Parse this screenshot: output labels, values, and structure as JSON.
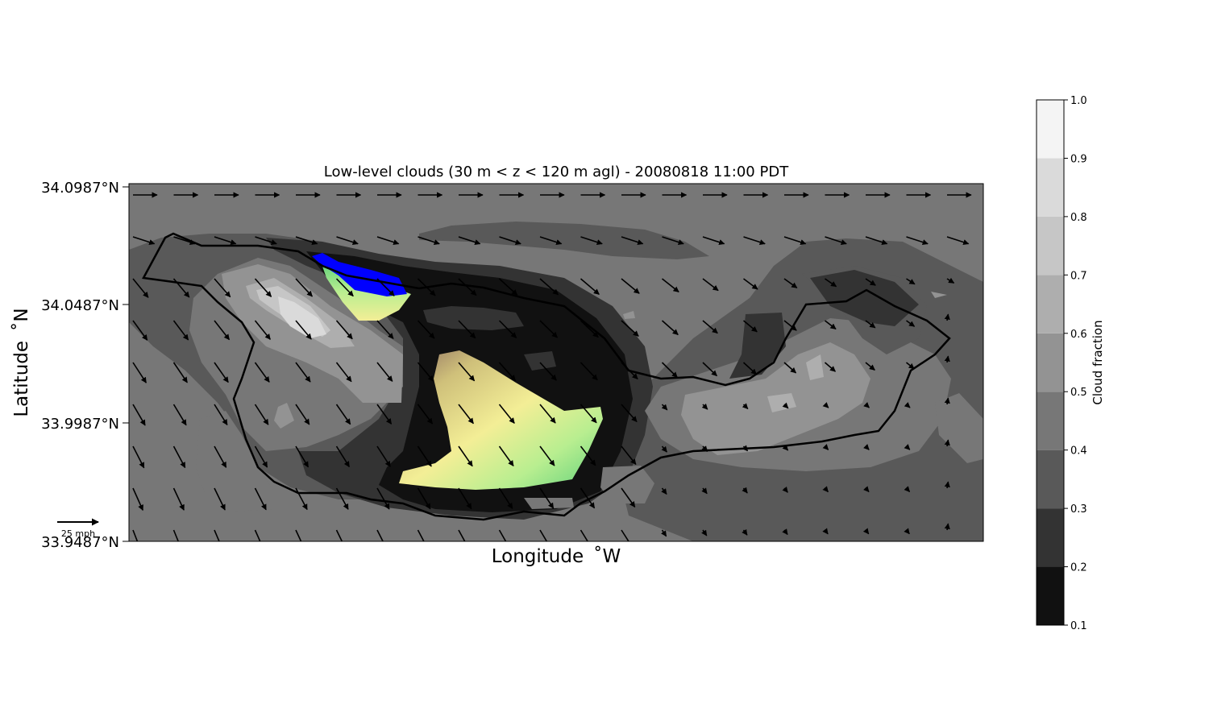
{
  "chart_data": {
    "type": "heatmap",
    "title": "Low-level clouds (30 m < z < 120 m agl) - 20080818 11:00 PDT",
    "xlabel": "Longitude $^\\circ$W",
    "xlabel_display": "Longitude  ˚W",
    "ylabel_display": "Latitude  ˚N",
    "yticks": [
      "33.9487°N",
      "33.9987°N",
      "34.0487°N",
      "34.0987°N"
    ],
    "ytick_values": [
      33.9487,
      33.9987,
      34.0487,
      34.0987
    ],
    "ylim": [
      33.9487,
      34.0987
    ],
    "colorbar": {
      "label": "Cloud fraction",
      "ticks": [
        "0.1",
        "0.2",
        "0.3",
        "0.4",
        "0.5",
        "0.6",
        "0.7",
        "0.8",
        "0.9",
        "1.0"
      ],
      "levels": [
        0.1,
        0.2,
        0.3,
        0.4,
        0.5,
        0.6,
        0.7,
        0.8,
        0.9,
        1.0
      ],
      "colors": [
        "#111111",
        "#333333",
        "#595959",
        "#777777",
        "#939393",
        "#aeaeae",
        "#c6c6c6",
        "#dadada",
        "#f4f4f4"
      ]
    },
    "wind_scale": {
      "label": "25 mph",
      "value": 25
    },
    "highlight_colors": {
      "blue": "#0000ff",
      "green": "#5ed07a",
      "lightgreen": "#b8ee90",
      "yellow": "#f3ee96",
      "tan": "#cfc07a",
      "brown": "#8a6a60"
    },
    "grid": false
  }
}
